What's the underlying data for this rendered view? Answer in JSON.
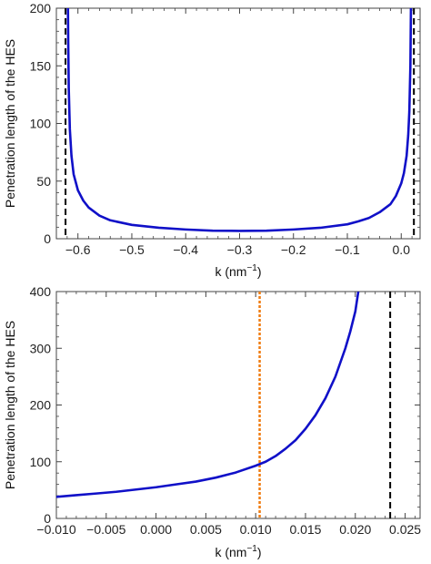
{
  "chart_data": [
    {
      "type": "line",
      "xlabel": "k (nm",
      "xlabel_sup": "−1",
      "xlabel_close": ")",
      "ylabel": "Penetration length of the HES",
      "xlim": [
        -0.64,
        0.035
      ],
      "ylim": [
        0,
        200
      ],
      "x_ticks": [
        -0.6,
        -0.5,
        -0.4,
        -0.3,
        -0.2,
        -0.1,
        0.0
      ],
      "x_tick_labels": [
        "−0.6",
        "−0.5",
        "−0.4",
        "−0.3",
        "−0.2",
        "−0.1",
        "0.0"
      ],
      "y_ticks": [
        0,
        50,
        100,
        150,
        200
      ],
      "y_tick_labels": [
        "0",
        "50",
        "100",
        "150",
        "200"
      ],
      "grid": false,
      "series": [
        {
          "color": "#1010c8",
          "x": [
            -0.6185,
            -0.618,
            -0.617,
            -0.615,
            -0.612,
            -0.608,
            -0.6,
            -0.59,
            -0.58,
            -0.56,
            -0.54,
            -0.5,
            -0.45,
            -0.4,
            -0.35,
            -0.3,
            -0.25,
            -0.2,
            -0.15,
            -0.1,
            -0.08,
            -0.06,
            -0.04,
            -0.02,
            -0.01,
            0.0,
            0.005,
            0.01,
            0.013,
            0.015,
            0.017,
            0.018
          ],
          "y": [
            200,
            170,
            130,
            95,
            72,
            56,
            42,
            33,
            27,
            20,
            16,
            12,
            9.5,
            8,
            7,
            6.8,
            7,
            8,
            9.5,
            12.5,
            15,
            18,
            23,
            30,
            37,
            48,
            57,
            72,
            90,
            110,
            150,
            200
          ]
        }
      ],
      "vlines": [
        {
          "x": -0.623,
          "color": "#000000",
          "dash": "dashed"
        },
        {
          "x": 0.0235,
          "color": "#000000",
          "dash": "dashed"
        }
      ]
    },
    {
      "type": "line",
      "xlabel": "k (nm",
      "xlabel_sup": "−1",
      "xlabel_close": ")",
      "ylabel": "Penetration length of the HES",
      "xlim": [
        -0.01,
        0.0265
      ],
      "ylim": [
        0,
        400
      ],
      "x_ticks": [
        -0.01,
        -0.005,
        0.0,
        0.005,
        0.01,
        0.015,
        0.02,
        0.025
      ],
      "x_tick_labels": [
        "−0.010",
        "−0.005",
        "0.000",
        "0.005",
        "0.010",
        "0.015",
        "0.020",
        "0.025"
      ],
      "y_ticks": [
        0,
        100,
        200,
        300,
        400
      ],
      "y_tick_labels": [
        "0",
        "100",
        "200",
        "300",
        "400"
      ],
      "grid": false,
      "series": [
        {
          "color": "#1010c8",
          "x": [
            -0.01,
            -0.008,
            -0.006,
            -0.004,
            -0.002,
            0.0,
            0.002,
            0.004,
            0.006,
            0.008,
            0.01,
            0.011,
            0.012,
            0.013,
            0.014,
            0.015,
            0.016,
            0.017,
            0.018,
            0.019,
            0.0195,
            0.02,
            0.0203
          ],
          "y": [
            38,
            41,
            44,
            47,
            51,
            55,
            60,
            65,
            72,
            81,
            93,
            100,
            110,
            123,
            138,
            158,
            182,
            212,
            250,
            300,
            330,
            365,
            400
          ]
        }
      ],
      "vlines": [
        {
          "x": 0.0104,
          "color": "#f07c10",
          "dash": "dotted"
        },
        {
          "x": 0.0235,
          "color": "#000000",
          "dash": "dashed"
        }
      ]
    }
  ]
}
